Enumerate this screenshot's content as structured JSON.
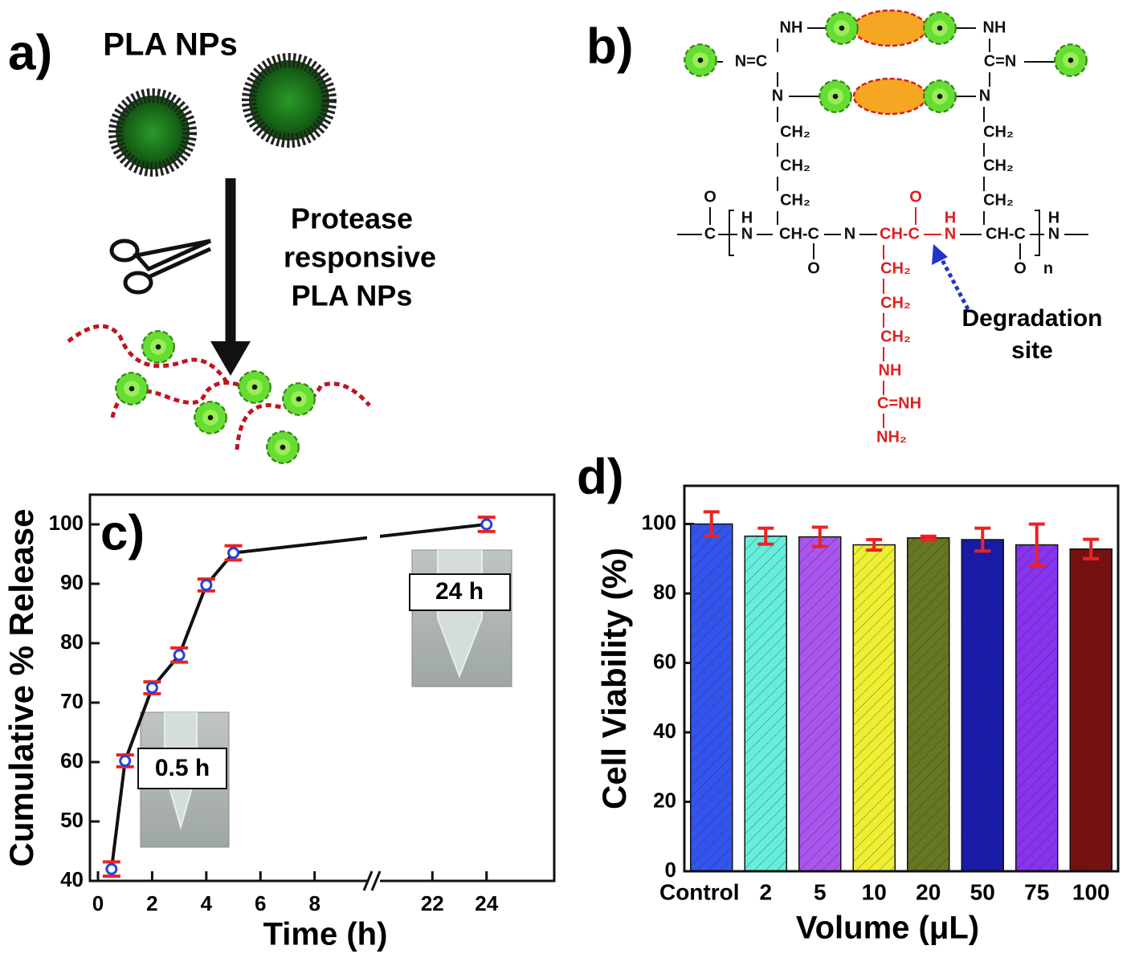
{
  "panel_a": {
    "label": "a)",
    "title": "PLA NPs",
    "caption": [
      "Protease",
      "responsive",
      "PLA NPs"
    ]
  },
  "panel_b": {
    "label": "b)",
    "groups": [
      "NH",
      "NH",
      "N=C",
      "C=N",
      "N",
      "N",
      "CH₂",
      "CH₂",
      "CH₂",
      "CH₂",
      "CH₂",
      "CH₂",
      "O",
      "C",
      "H",
      "N",
      "CH-C",
      "O",
      "N",
      "CH-C",
      "O",
      "H",
      "N",
      "CH-C",
      "O",
      "H",
      "N",
      "n",
      "CH₂",
      "CH₂",
      "CH₂",
      "NH",
      "C=NH",
      "NH₂"
    ],
    "note": [
      "Degradation",
      "site"
    ]
  },
  "chart_data": [
    {
      "type": "line",
      "label": "c)",
      "ylabel": "Cumulative % Release",
      "xlabel": "Time (h)",
      "x": [
        0.5,
        1,
        2,
        3,
        4,
        5,
        24
      ],
      "values": [
        42,
        60.2,
        72.5,
        78,
        89.8,
        95.2,
        100
      ],
      "errors": [
        1.2,
        1,
        1,
        1.2,
        1,
        1.2,
        1.2
      ],
      "color": "#111111",
      "marker_color": "#2244dd",
      "error_color": "#ee2222",
      "xlim": [
        0,
        26.5
      ],
      "xbreak": [
        10,
        20
      ],
      "xticks": [
        0,
        2,
        4,
        6,
        8,
        22,
        24
      ],
      "ylim": [
        40,
        105
      ],
      "yticks": [
        40,
        50,
        60,
        70,
        80,
        90,
        100
      ],
      "annotations": [
        "0.5 h",
        "24 h"
      ]
    },
    {
      "type": "bar",
      "label": "d)",
      "ylabel": "Cell Viability (%)",
      "xlabel": "Volume (μL)",
      "categories": [
        "Control",
        "2",
        "5",
        "10",
        "20",
        "50",
        "75",
        "100"
      ],
      "values": [
        100,
        96.5,
        96.3,
        94,
        96,
        95.5,
        94,
        92.8
      ],
      "errors": [
        3.5,
        2.3,
        2.8,
        1.5,
        0.5,
        3.3,
        6,
        2.8
      ],
      "colors": [
        "#3355ee",
        "#66eedd",
        "#aa55ee",
        "#eeee33",
        "#667722",
        "#1a1aaa",
        "#8833ee",
        "#771111"
      ],
      "error_color": "#ee2222",
      "ylim": [
        0,
        111
      ],
      "yticks": [
        0,
        20,
        40,
        60,
        80,
        100
      ]
    }
  ]
}
